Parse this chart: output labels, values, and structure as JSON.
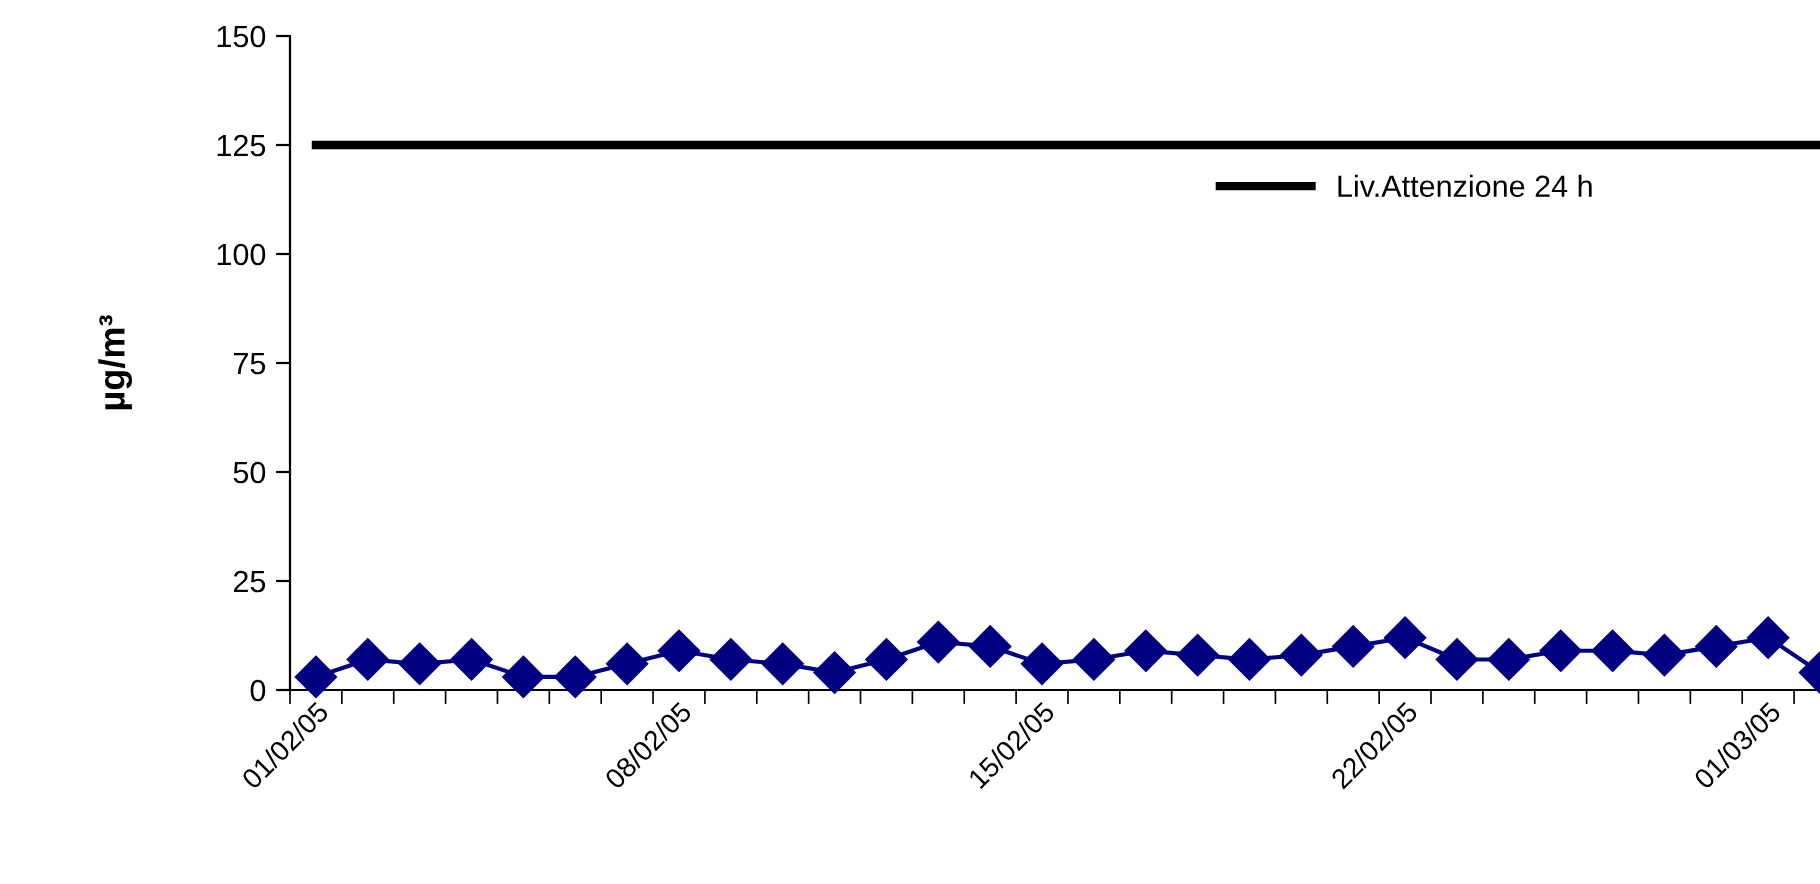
{
  "chart_data": {
    "type": "line",
    "ylabel": "µg/m³",
    "categories": [
      "01/02/05",
      null,
      null,
      null,
      null,
      null,
      null,
      "08/02/05",
      null,
      null,
      null,
      null,
      null,
      null,
      "15/02/05",
      null,
      null,
      null,
      null,
      null,
      null,
      "22/02/05",
      null,
      null,
      null,
      null,
      null,
      null,
      "01/03/05",
      null
    ],
    "series": [
      {
        "color": "#000080",
        "marker": "diamond",
        "values": [
          3,
          7,
          6,
          7,
          3,
          3,
          6,
          9,
          7,
          6,
          4,
          7,
          11,
          10,
          6,
          7,
          9,
          8,
          7,
          8,
          10,
          12,
          7,
          7,
          9,
          9,
          8,
          10,
          12,
          4
        ]
      },
      {
        "name": "Liv.Attenzione 24 h",
        "color": "#000000",
        "marker": "none",
        "values": [
          125,
          125,
          125,
          125,
          125,
          125,
          125,
          125,
          125,
          125,
          125,
          125,
          125,
          125,
          125,
          125,
          125,
          125,
          125,
          125,
          125,
          125,
          125,
          125,
          125,
          125,
          125,
          125,
          125,
          125
        ]
      }
    ],
    "ylim": [
      0,
      150
    ],
    "yticks": [
      0,
      25,
      50,
      75,
      100,
      125,
      150
    ],
    "grid": false,
    "legend": "top right"
  }
}
